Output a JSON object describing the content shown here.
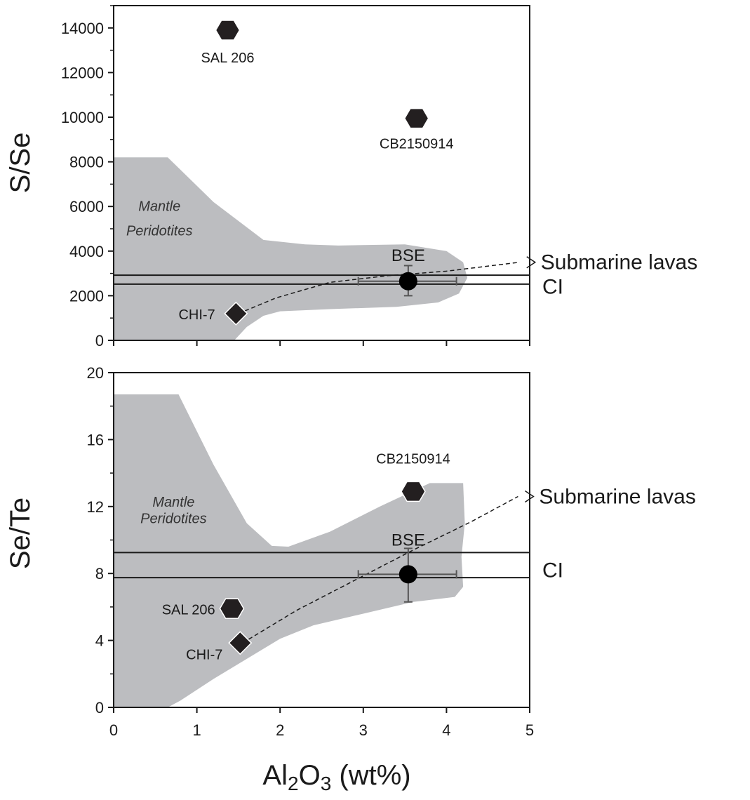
{
  "figure": {
    "xlabel_main": "Al",
    "xlabel_sub1": "2",
    "xlabel_mid": "O",
    "xlabel_sub2": "3",
    "xlabel_tail": " (wt%)"
  },
  "colors": {
    "region_fill": "#bcbdc0",
    "marker": "#231f20",
    "errorbar": "#555555",
    "axis": "#1a1a1a"
  },
  "chart_data": [
    {
      "type": "scatter",
      "panel": "top",
      "ylabel": "S/Se",
      "xlim": [
        0,
        5
      ],
      "ylim": [
        0,
        15000
      ],
      "y_ticks": [
        0,
        2000,
        4000,
        6000,
        8000,
        10000,
        12000,
        14000
      ],
      "y_tick_labels": [
        "0",
        "2000",
        "4000",
        "6000",
        "8000",
        "10000",
        "12000",
        "14000"
      ],
      "x_ticks": [
        0,
        1,
        2,
        3,
        4,
        5
      ],
      "x_tick_labels": [],
      "grid": false,
      "points": [
        {
          "label": "SAL 206",
          "x": 1.37,
          "y": 13900,
          "marker": "hexagon",
          "label_x": 1.37,
          "label_y": 12700,
          "anchor": "middle"
        },
        {
          "label": "CB2150914",
          "x": 3.64,
          "y": 9950,
          "marker": "hexagon",
          "label_x": 3.64,
          "label_y": 8850,
          "anchor": "middle"
        },
        {
          "label": "CHI-7",
          "x": 1.47,
          "y": 1200,
          "marker": "diamond",
          "label_x": 1.22,
          "label_y": 1200,
          "anchor": "end"
        },
        {
          "label": "BSE",
          "x": 3.54,
          "y": 2650,
          "marker": "circle",
          "label_x": 3.54,
          "label_y": 3800,
          "anchor": "middle",
          "xerr": [
            2.94,
            4.12
          ],
          "yerr": [
            2000,
            3350
          ]
        }
      ],
      "region": {
        "label_line1": "Mantle",
        "label_line2": "Peridotites",
        "label_x": 0.55,
        "label_y1": 5800,
        "label_y2": 4700,
        "outline": [
          [
            0,
            8200
          ],
          [
            0.65,
            8200
          ],
          [
            1.2,
            6200
          ],
          [
            1.8,
            4500
          ],
          [
            2.3,
            4300
          ],
          [
            2.7,
            4250
          ],
          [
            3.5,
            4300
          ],
          [
            4.0,
            4000
          ],
          [
            4.2,
            3500
          ],
          [
            4.25,
            2800
          ],
          [
            4.15,
            2100
          ],
          [
            3.9,
            1700
          ],
          [
            3.4,
            1500
          ],
          [
            2.6,
            1400
          ],
          [
            2.0,
            1300
          ],
          [
            1.8,
            1100
          ],
          [
            1.6,
            600
          ],
          [
            1.5,
            200
          ],
          [
            1.45,
            0
          ],
          [
            0,
            0
          ]
        ]
      },
      "hlines": [
        {
          "y": 2920
        },
        {
          "y": 2520
        }
      ],
      "ci_label": {
        "text": "CI",
        "x": 5.25,
        "y": 2400
      },
      "trend": {
        "points": [
          [
            1.5,
            1200
          ],
          [
            1.95,
            1900
          ],
          [
            2.6,
            2600
          ],
          [
            3.3,
            2900
          ],
          [
            4.0,
            3100
          ],
          [
            4.88,
            3500
          ]
        ],
        "label": "Submarine lavas",
        "label_x": 5.25,
        "label_y": 3450
      }
    },
    {
      "type": "scatter",
      "panel": "bottom",
      "ylabel": "Se/Te",
      "xlim": [
        0,
        5
      ],
      "ylim": [
        0,
        20
      ],
      "y_ticks": [
        0,
        4,
        8,
        12,
        16,
        20
      ],
      "y_tick_labels": [
        "0",
        "4",
        "8",
        "12",
        "16",
        "20"
      ],
      "x_ticks": [
        0,
        1,
        2,
        3,
        4,
        5
      ],
      "x_tick_labels": [
        "0",
        "1",
        "2",
        "3",
        "4",
        "5"
      ],
      "grid": false,
      "points": [
        {
          "label": "CB2150914",
          "x": 3.6,
          "y": 12.9,
          "marker": "hexagon",
          "label_x": 3.6,
          "label_y": 14.9,
          "anchor": "middle"
        },
        {
          "label": "SAL 206",
          "x": 1.42,
          "y": 5.9,
          "marker": "hexagon",
          "label_x": 1.22,
          "label_y": 5.9,
          "anchor": "end"
        },
        {
          "label": "CHI-7",
          "x": 1.52,
          "y": 3.85,
          "marker": "diamond",
          "label_x": 1.31,
          "label_y": 3.2,
          "anchor": "end"
        },
        {
          "label": "BSE",
          "x": 3.54,
          "y": 7.95,
          "marker": "circle",
          "label_x": 3.54,
          "label_y": 10.0,
          "anchor": "middle",
          "xerr": [
            2.94,
            4.12
          ],
          "yerr": [
            6.3,
            9.5
          ]
        }
      ],
      "region": {
        "label_line1": "Mantle",
        "label_line2": "Peridotites",
        "label_x": 0.72,
        "label_y1": 12.0,
        "label_y2": 11.0,
        "outline": [
          [
            0,
            18.7
          ],
          [
            0.78,
            18.7
          ],
          [
            1.2,
            14.5
          ],
          [
            1.6,
            11.0
          ],
          [
            1.9,
            9.65
          ],
          [
            2.1,
            9.6
          ],
          [
            2.6,
            10.5
          ],
          [
            3.2,
            12.0
          ],
          [
            3.8,
            13.4
          ],
          [
            4.2,
            13.4
          ],
          [
            4.22,
            11.0
          ],
          [
            4.18,
            9.0
          ],
          [
            4.2,
            7.2
          ],
          [
            4.1,
            6.6
          ],
          [
            3.6,
            6.3
          ],
          [
            3.0,
            5.6
          ],
          [
            2.4,
            4.9
          ],
          [
            2.0,
            4.1
          ],
          [
            1.6,
            2.9
          ],
          [
            1.2,
            1.7
          ],
          [
            0.8,
            0.4
          ],
          [
            0.65,
            0
          ],
          [
            0,
            0
          ]
        ]
      },
      "hlines": [
        {
          "y": 9.25
        },
        {
          "y": 7.75
        }
      ],
      "ci_label": {
        "text": "CI",
        "x": 5.25,
        "y": 8.2
      },
      "trend": {
        "points": [
          [
            1.55,
            3.85
          ],
          [
            2.2,
            5.8
          ],
          [
            2.9,
            7.6
          ],
          [
            3.6,
            9.4
          ],
          [
            4.3,
            11.1
          ],
          [
            4.86,
            12.6
          ]
        ],
        "label": "Submarine lavas",
        "label_x": 5.22,
        "label_y": 12.6
      }
    }
  ]
}
